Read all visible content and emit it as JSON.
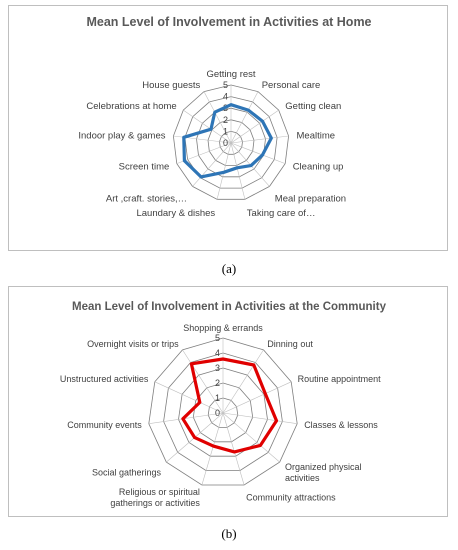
{
  "figure": {
    "caption_a": "(a)",
    "caption_b": "(b)"
  },
  "chart_data": [
    {
      "type": "radar",
      "title": "Mean Level of Involvement in Activities at Home",
      "rmin": 0,
      "rmax": 5,
      "ticks": [
        "0",
        "1",
        "2",
        "3",
        "4",
        "5"
      ],
      "grid": true,
      "legend": "none",
      "series_color": "#2e75b6",
      "categories": [
        "Getting rest",
        "Personal care",
        "Getting clean",
        "Mealtime",
        "Cleaning up",
        "Meal preparation",
        "Taking care of…",
        "Laundary & dishes",
        "Art ,craft. stories,…",
        "Screen time",
        "Indoor play & games",
        "Celebrations at home",
        "House guests"
      ],
      "values": [
        3.3,
        3.2,
        3.3,
        3.5,
        2.9,
        2.6,
        2.2,
        2.6,
        3.9,
        4.3,
        4.1,
        2.1,
        3.0
      ]
    },
    {
      "type": "radar",
      "title": "Mean Level of Involvement in Activities at the Community",
      "rmin": 0,
      "rmax": 5,
      "ticks": [
        "0",
        "1",
        "2",
        "3",
        "4",
        "5"
      ],
      "grid": true,
      "legend": "none",
      "series_color": "#e00000",
      "categories": [
        "Shopping & errands",
        "Dinning out",
        "Routine appointment",
        "Classes & lessons",
        "Organized physical activities",
        "Community attractions",
        "Religious or spiritual gatherings or activities",
        "Social gatherings",
        "Community events",
        "Unstructured activities",
        "Overnight visits or trips"
      ],
      "values": [
        3.6,
        3.8,
        3.1,
        3.6,
        3.3,
        2.7,
        2.3,
        2.5,
        2.7,
        1.7,
        3.9
      ]
    }
  ]
}
